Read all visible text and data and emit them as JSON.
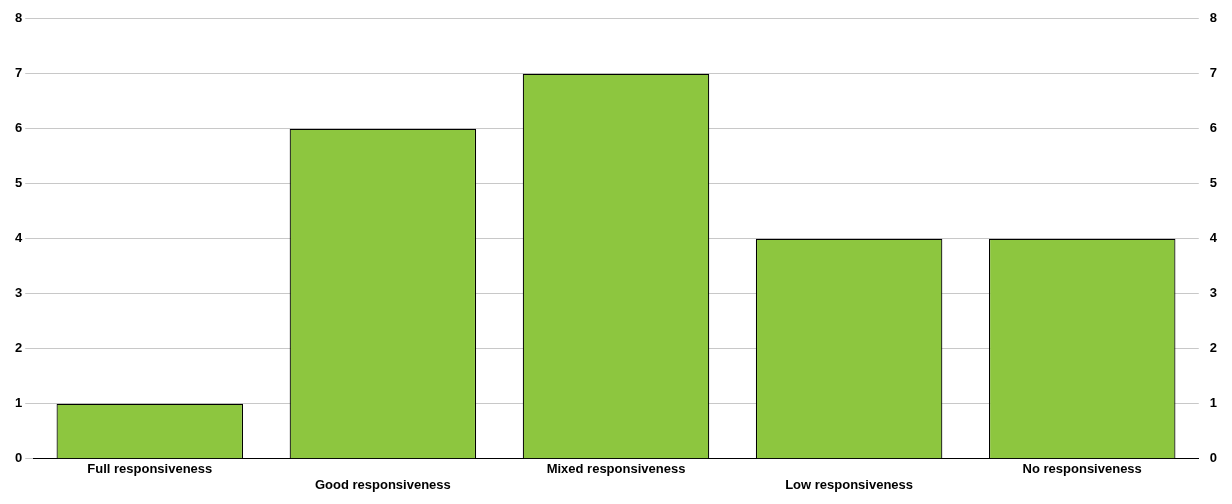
{
  "chart_data": {
    "type": "bar",
    "categories": [
      "Full responsiveness",
      "Good responsiveness",
      "Mixed responsiveness",
      "Low responsiveness",
      "No responsiveness"
    ],
    "values": [
      1,
      6,
      7,
      4,
      4
    ],
    "color": "#8dc63f",
    "ylim": [
      0,
      8
    ],
    "yticks": [
      0,
      1,
      2,
      3,
      4,
      5,
      6,
      7,
      8
    ],
    "y2lim": [
      0,
      8
    ],
    "y2ticks": [
      0,
      1,
      2,
      3,
      4,
      5,
      6,
      7,
      8
    ],
    "grid": "y"
  }
}
